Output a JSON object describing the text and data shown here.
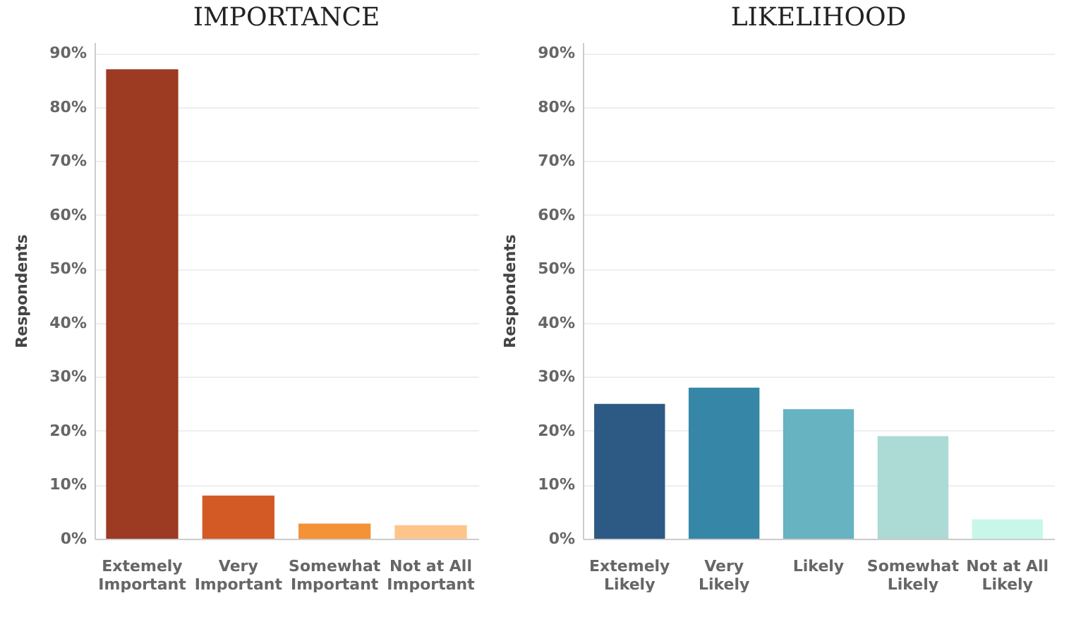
{
  "chart_data": [
    {
      "type": "bar",
      "title": "IMPORTANCE",
      "ylabel": "Respondents",
      "categories": [
        "Extemely Important",
        "Very Important",
        "Somewhat Important",
        "Not at All Important"
      ],
      "values": [
        87,
        8,
        2.8,
        2.5
      ],
      "colors": [
        "#9c3a22",
        "#d35a25",
        "#f39237",
        "#fdc58a"
      ],
      "ylim": [
        0,
        92
      ],
      "yticks": [
        {
          "value": 0,
          "label": "0%"
        },
        {
          "value": 10,
          "label": "10%"
        },
        {
          "value": 20,
          "label": "20%"
        },
        {
          "value": 30,
          "label": "30%"
        },
        {
          "value": 40,
          "label": "40%"
        },
        {
          "value": 50,
          "label": "50%"
        },
        {
          "value": 60,
          "label": "60%"
        },
        {
          "value": 70,
          "label": "70%"
        },
        {
          "value": 80,
          "label": "80%"
        },
        {
          "value": 90,
          "label": "90%"
        }
      ],
      "grid": "y"
    },
    {
      "type": "bar",
      "title": "LIKELIHOOD",
      "ylabel": "Respondents",
      "categories": [
        "Extemely Likely",
        "Very Likely",
        "Likely",
        "Somewhat Likely",
        "Not at All Likely"
      ],
      "values": [
        25,
        28,
        24,
        19,
        3.6
      ],
      "colors": [
        "#2d5a85",
        "#3686a8",
        "#67b3c2",
        "#acdad4",
        "#c8f7e9"
      ],
      "ylim": [
        0,
        92
      ],
      "yticks": [
        {
          "value": 0,
          "label": "0%"
        },
        {
          "value": 10,
          "label": "10%"
        },
        {
          "value": 20,
          "label": "20%"
        },
        {
          "value": 30,
          "label": "30%"
        },
        {
          "value": 40,
          "label": "40%"
        },
        {
          "value": 50,
          "label": "50%"
        },
        {
          "value": 60,
          "label": "60%"
        },
        {
          "value": 70,
          "label": "70%"
        },
        {
          "value": 80,
          "label": "80%"
        },
        {
          "value": 90,
          "label": "90%"
        }
      ],
      "grid": "y"
    }
  ]
}
